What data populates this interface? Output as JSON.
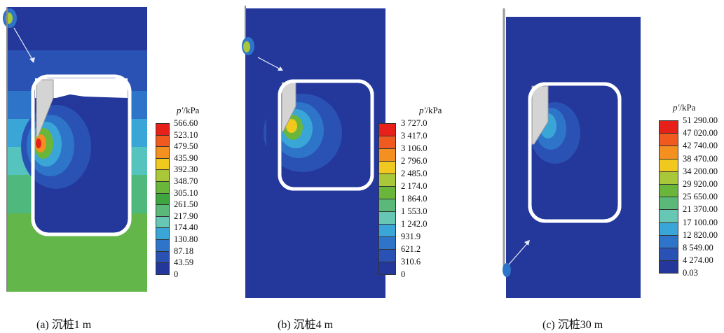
{
  "panels": [
    {
      "id": "a",
      "caption": "(a) 沉桩1 m",
      "legend_title_symbol": "p′",
      "legend_title_unit": "/kPa",
      "legend_values": [
        "566.60",
        "523.10",
        "479.50",
        "435.90",
        "392.30",
        "348.70",
        "305.10",
        "261.50",
        "217.90",
        "174.40",
        "130.80",
        "87.18",
        "43.59",
        "0"
      ]
    },
    {
      "id": "b",
      "caption": "(b) 沉桩4 m",
      "legend_title_symbol": "p′",
      "legend_title_unit": "/kPa",
      "legend_values": [
        "3 727.0",
        "3 417.0",
        "3 106.0",
        "2 796.0",
        "2 485.0",
        "2 174.0",
        "1 864.0",
        "1 553.0",
        "1 242.0",
        "931.9",
        "621.2",
        "310.6",
        "0"
      ]
    },
    {
      "id": "c",
      "caption": "(c) 沉桩30 m",
      "legend_title_symbol": "p′",
      "legend_title_unit": "/kPa",
      "legend_values": [
        "51 290.00",
        "47 020.00",
        "42 740.00",
        "38 470.00",
        "34 200.00",
        "29 920.00",
        "25 650.00",
        "21 370.00",
        "17 100.00",
        "12 820.00",
        "8 549.00",
        "4 274.00",
        "0.03"
      ]
    }
  ],
  "colors": {
    "scale": [
      "#e8201a",
      "#f05a1e",
      "#f4901f",
      "#f0c81e",
      "#a8c83a",
      "#6ab63a",
      "#3ea63e",
      "#5ab878",
      "#66c8b4",
      "#3aa6d8",
      "#2e74c8",
      "#2a52b4",
      "#24389c"
    ]
  }
}
